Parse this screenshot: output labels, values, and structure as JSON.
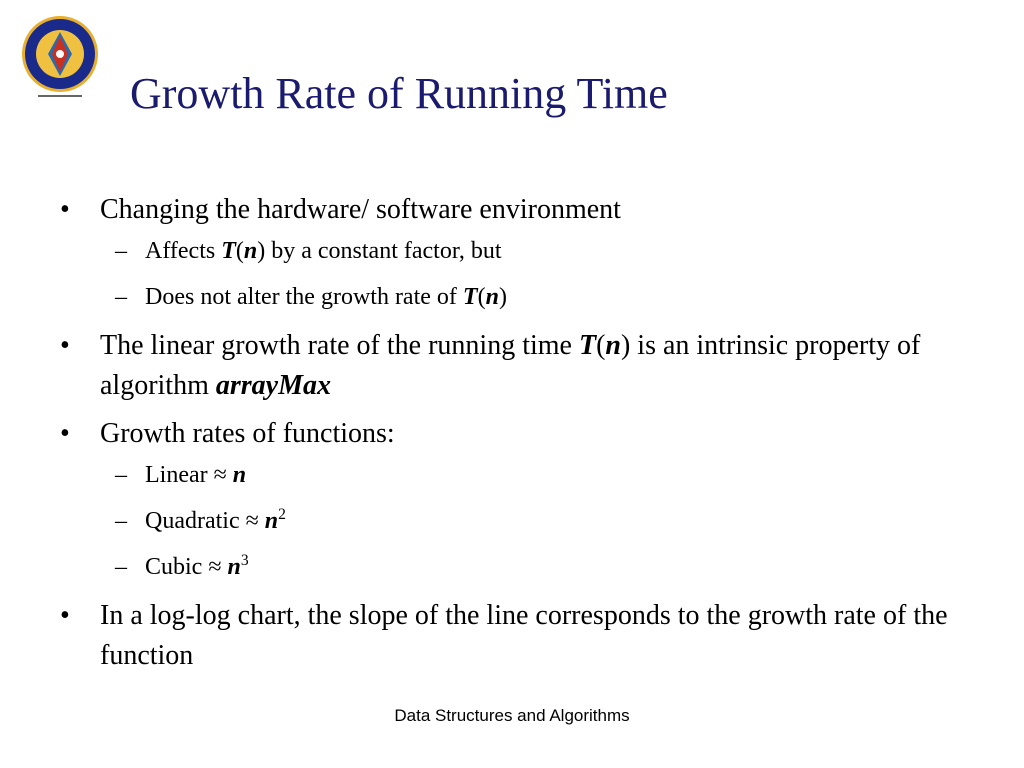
{
  "title": "Growth Rate of Running Time",
  "footer": "Data Structures and Algorithms",
  "bullet_symbol": "•",
  "dash_symbol": "–",
  "bullets": {
    "b1": {
      "text": "Changing the hardware/ software environment",
      "sub1": {
        "pre": "Affects ",
        "T": "T",
        "open": "(",
        "n": "n",
        "close": ")",
        "post": " by a constant factor, but"
      },
      "sub2": {
        "pre": "Does not alter the growth rate of ",
        "T": "T",
        "open": "(",
        "n": "n",
        "close": ")"
      }
    },
    "b2": {
      "pre": "The linear growth rate of the running time ",
      "T": "T",
      "open": "(",
      "n": "n",
      "close": ")",
      "mid": " is an intrinsic property of algorithm ",
      "algo": "arrayMax"
    },
    "b3": {
      "text": "Growth rates of functions:",
      "linear": {
        "pre": "Linear ",
        "approx": "≈",
        "n": "n"
      },
      "quadratic": {
        "pre": "Quadratic ",
        "approx": "≈",
        "n": "n",
        "exp": "2"
      },
      "cubic": {
        "pre": "Cubic ",
        "approx": "≈",
        "n": "n",
        "exp": "3"
      }
    },
    "b4": {
      "text": "In a log-log chart, the slope of the line corresponds to the growth rate of the function"
    }
  },
  "colors": {
    "title": "#1a1a6e",
    "logo_ring": "#1a2a8a",
    "logo_inner": "#e0a020",
    "logo_center": "#2a6ab0"
  }
}
